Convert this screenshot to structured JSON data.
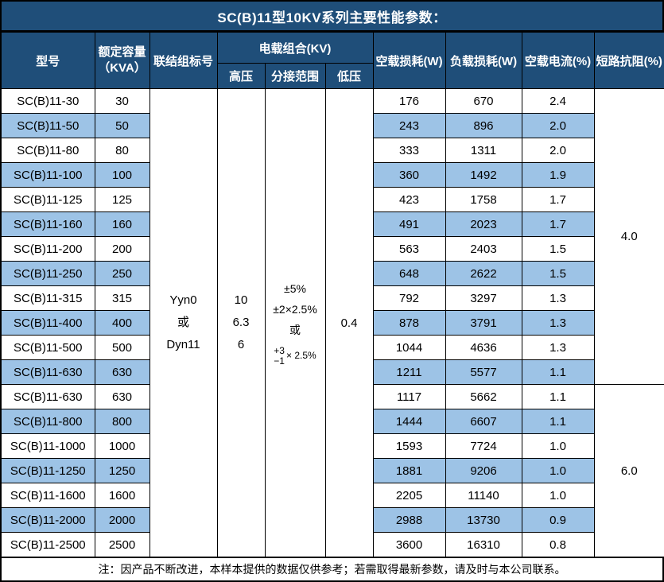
{
  "title": "SC(B)11型10KV系列主要性能参数：",
  "colors": {
    "header_blue": "#1F4E79",
    "stripe_blue": "#9DC3E6",
    "border": "#000000",
    "header_text": "#ffffff"
  },
  "table": {
    "headers": {
      "model": "型号",
      "capacity_line1": "额定容量",
      "capacity_line2": "（KVA）",
      "connection": "联结组标号",
      "voltage_group": "电载组合(KV)",
      "high_voltage": "高压",
      "tap_range": "分接范围",
      "low_voltage": "低压",
      "no_load_loss": "空载损耗(W)",
      "load_loss": "负载损耗(W)",
      "no_load_current": "空载电流(%)",
      "impedance": "短路抗阻(%)"
    },
    "merged": {
      "connection_lines": [
        "Yyn0",
        "或",
        "Dyn11"
      ],
      "high_voltage_lines": [
        "10",
        "6.3",
        "6"
      ],
      "tap_range_lines": [
        "±5%",
        "±2×2.5%",
        "或"
      ],
      "tap_fraction": {
        "top": "+3",
        "bottom": "−1",
        "suffix": "× 2.5%"
      },
      "low_voltage_value": "0.4",
      "impedance_groups": [
        {
          "value": "4.0",
          "row_count": 12
        },
        {
          "value": "6.0",
          "row_count": 7
        }
      ]
    },
    "rows": [
      {
        "model": "SC(B)11-30",
        "capacity": "30",
        "no_load_loss": "176",
        "load_loss": "670",
        "no_load_current": "2.4"
      },
      {
        "model": "SC(B)11-50",
        "capacity": "50",
        "no_load_loss": "243",
        "load_loss": "896",
        "no_load_current": "2.0"
      },
      {
        "model": "SC(B)11-80",
        "capacity": "80",
        "no_load_loss": "333",
        "load_loss": "1311",
        "no_load_current": "2.0"
      },
      {
        "model": "SC(B)11-100",
        "capacity": "100",
        "no_load_loss": "360",
        "load_loss": "1492",
        "no_load_current": "1.9"
      },
      {
        "model": "SC(B)11-125",
        "capacity": "125",
        "no_load_loss": "423",
        "load_loss": "1758",
        "no_load_current": "1.7"
      },
      {
        "model": "SC(B)11-160",
        "capacity": "160",
        "no_load_loss": "491",
        "load_loss": "2023",
        "no_load_current": "1.7"
      },
      {
        "model": "SC(B)11-200",
        "capacity": "200",
        "no_load_loss": "563",
        "load_loss": "2403",
        "no_load_current": "1.5"
      },
      {
        "model": "SC(B)11-250",
        "capacity": "250",
        "no_load_loss": "648",
        "load_loss": "2622",
        "no_load_current": "1.5"
      },
      {
        "model": "SC(B)11-315",
        "capacity": "315",
        "no_load_loss": "792",
        "load_loss": "3297",
        "no_load_current": "1.3"
      },
      {
        "model": "SC(B)11-400",
        "capacity": "400",
        "no_load_loss": "878",
        "load_loss": "3791",
        "no_load_current": "1.3"
      },
      {
        "model": "SC(B)11-500",
        "capacity": "500",
        "no_load_loss": "1044",
        "load_loss": "4636",
        "no_load_current": "1.3"
      },
      {
        "model": "SC(B)11-630",
        "capacity": "630",
        "no_load_loss": "1211",
        "load_loss": "5577",
        "no_load_current": "1.1"
      },
      {
        "model": "SC(B)11-630",
        "capacity": "630",
        "no_load_loss": "1117",
        "load_loss": "5662",
        "no_load_current": "1.1"
      },
      {
        "model": "SC(B)11-800",
        "capacity": "800",
        "no_load_loss": "1444",
        "load_loss": "6607",
        "no_load_current": "1.1"
      },
      {
        "model": "SC(B)11-1000",
        "capacity": "1000",
        "no_load_loss": "1593",
        "load_loss": "7724",
        "no_load_current": "1.0"
      },
      {
        "model": "SC(B)11-1250",
        "capacity": "1250",
        "no_load_loss": "1881",
        "load_loss": "9206",
        "no_load_current": "1.0"
      },
      {
        "model": "SC(B)11-1600",
        "capacity": "1600",
        "no_load_loss": "2205",
        "load_loss": "11140",
        "no_load_current": "1.0"
      },
      {
        "model": "SC(B)11-2000",
        "capacity": "2000",
        "no_load_loss": "2988",
        "load_loss": "13730",
        "no_load_current": "0.9"
      },
      {
        "model": "SC(B)11-2500",
        "capacity": "2500",
        "no_load_loss": "3600",
        "load_loss": "16310",
        "no_load_current": "0.8"
      }
    ]
  },
  "footer": "注：因产品不断改进，本样本提供的数据仅供参考；若需取得最新参数，请及时与本公司联系。"
}
